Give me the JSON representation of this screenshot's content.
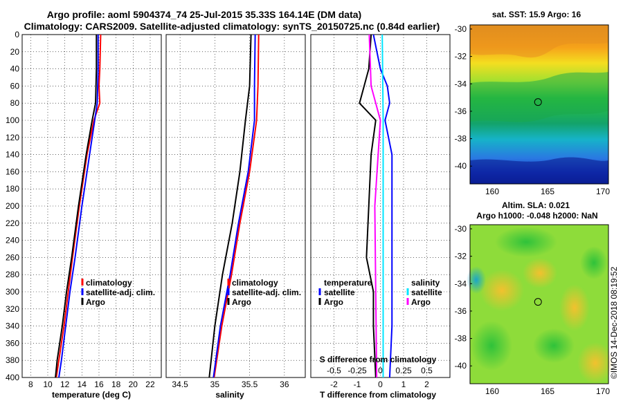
{
  "title": {
    "line1": "Argo profile: aoml 5904374_74 25-Jul-2015 35.33S 164.14E (DM data)",
    "line2": "Climatology: CARS2009. Satellite-adjusted climatology: synTS_20150725.nc (0.84d earlier)"
  },
  "colors": {
    "climatology": "#ff0000",
    "satellite": "#0000ff",
    "argo": "#000000",
    "satellite_s": "#00e5ff",
    "argo_s": "#ff00ff"
  },
  "credit": "©IMOS 14-Dec-2018 08:19:52",
  "chart_data": [
    {
      "type": "line",
      "name": "temperature",
      "xlabel": "temperature (deg C)",
      "xlim": [
        7,
        23.3
      ],
      "ylim": [
        400,
        0
      ],
      "xticks": [
        8,
        10,
        12,
        14,
        16,
        18,
        20,
        22
      ],
      "yticks": [
        0,
        20,
        40,
        60,
        80,
        100,
        120,
        140,
        160,
        180,
        200,
        220,
        240,
        260,
        280,
        300,
        320,
        340,
        360,
        380,
        400
      ],
      "legend": [
        "climatology",
        "satellite-adj. clim.",
        "Argo"
      ],
      "series": [
        {
          "name": "climatology",
          "color": "#ff0000",
          "depth": [
            0,
            40,
            60,
            80,
            100,
            140,
            200,
            260,
            300,
            340,
            380,
            400
          ],
          "values": [
            16.2,
            16.1,
            16.0,
            16.1,
            15.4,
            14.6,
            13.7,
            12.9,
            12.4,
            11.9,
            11.3,
            11.0
          ]
        },
        {
          "name": "satellite-adj. clim.",
          "color": "#0000ff",
          "depth": [
            0,
            40,
            80,
            100,
            140,
            200,
            260,
            300,
            340,
            380,
            400
          ],
          "values": [
            15.9,
            15.9,
            15.8,
            15.5,
            14.9,
            14.0,
            13.2,
            12.6,
            12.1,
            11.6,
            11.3
          ]
        },
        {
          "name": "Argo",
          "color": "#000000",
          "depth": [
            0,
            40,
            80,
            100,
            140,
            200,
            260,
            300,
            340,
            380,
            400
          ],
          "values": [
            15.7,
            15.7,
            15.6,
            15.2,
            14.5,
            13.6,
            12.8,
            12.2,
            11.7,
            11.1,
            10.9
          ]
        }
      ]
    },
    {
      "type": "line",
      "name": "salinity",
      "xlabel": "salinity",
      "xlim": [
        34.3,
        36.3
      ],
      "ylim": [
        400,
        0
      ],
      "xticks": [
        34.5,
        35,
        35.5,
        36
      ],
      "legend": [
        "climatology",
        "satellite-adj. clim.",
        "Argo"
      ],
      "series": [
        {
          "name": "climatology",
          "color": "#ff0000",
          "depth": [
            0,
            60,
            100,
            160,
            220,
            280,
            340,
            400
          ],
          "values": [
            35.63,
            35.62,
            35.6,
            35.5,
            35.36,
            35.24,
            35.1,
            34.99
          ]
        },
        {
          "name": "satellite-adj. clim.",
          "color": "#0000ff",
          "depth": [
            0,
            60,
            100,
            160,
            220,
            280,
            340,
            400
          ],
          "values": [
            35.58,
            35.57,
            35.57,
            35.48,
            35.34,
            35.22,
            35.08,
            34.98
          ]
        },
        {
          "name": "Argo",
          "color": "#000000",
          "depth": [
            0,
            60,
            100,
            160,
            220,
            280,
            340,
            400
          ],
          "values": [
            35.52,
            35.5,
            35.44,
            35.36,
            35.25,
            35.11,
            35.0,
            34.92
          ]
        }
      ]
    },
    {
      "type": "line",
      "name": "difference",
      "xlabel": "T difference from climatology",
      "xlabel_top": "S difference from climatology",
      "xlim": [
        -3,
        3
      ],
      "ylim": [
        400,
        0
      ],
      "xticks": [
        -2,
        -1,
        0,
        1,
        2
      ],
      "s_ticks": [
        "-0.5",
        "-0.25",
        "0",
        "0.25",
        "0.5"
      ],
      "legend_t_title": "temperature",
      "legend_s_title": "salinity",
      "legend_t": [
        "satellite",
        "Argo"
      ],
      "legend_s": [
        "satellite",
        "Argo"
      ],
      "series": [
        {
          "name": "T satellite",
          "color": "#0000ff",
          "depth": [
            0,
            40,
            60,
            80,
            100,
            140,
            200,
            260,
            300,
            340,
            400
          ],
          "values": [
            -0.3,
            0.0,
            0.3,
            0.4,
            0.2,
            0.5,
            0.5,
            0.5,
            0.5,
            0.5,
            0.4
          ]
        },
        {
          "name": "T Argo",
          "color": "#000000",
          "depth": [
            0,
            40,
            60,
            80,
            100,
            140,
            200,
            260,
            300,
            340,
            400
          ],
          "values": [
            -0.4,
            -0.5,
            -0.7,
            -0.9,
            -0.2,
            -0.4,
            -0.5,
            -0.6,
            -0.3,
            -0.3,
            -0.2
          ]
        },
        {
          "name": "S satellite",
          "color": "#00e5ff",
          "depth": [
            0,
            100,
            200,
            300,
            400
          ],
          "values": [
            0.02,
            0.03,
            0.03,
            0.03,
            0.03
          ]
        },
        {
          "name": "S Argo",
          "color": "#ff00ff",
          "depth": [
            0,
            60,
            100,
            200,
            300,
            400
          ],
          "values": [
            -0.12,
            -0.1,
            0.0,
            -0.06,
            -0.05,
            -0.04
          ]
        }
      ]
    },
    {
      "type": "heatmap",
      "name": "sst-map",
      "title": "sat. SST: 15.9 Argo: 16",
      "xlim": [
        158,
        170.5
      ],
      "ylim": [
        -41.3,
        -29.7
      ],
      "xticks": [
        160,
        165,
        170
      ],
      "yticks": [
        -30,
        -32,
        -34,
        -36,
        -38,
        -40
      ],
      "marker": {
        "lon": 164.14,
        "lat": -35.33
      }
    },
    {
      "type": "heatmap",
      "name": "sla-map",
      "title_line1": "Altim. SLA: 0.021",
      "title_line2": "Argo h1000: -0.048 h2000: NaN",
      "xlim": [
        158,
        170.5
      ],
      "ylim": [
        -41.3,
        -29.7
      ],
      "xticks": [
        160,
        165,
        170
      ],
      "yticks": [
        -30,
        -32,
        -34,
        -36,
        -38,
        -40
      ],
      "marker": {
        "lon": 164.14,
        "lat": -35.33
      }
    }
  ]
}
